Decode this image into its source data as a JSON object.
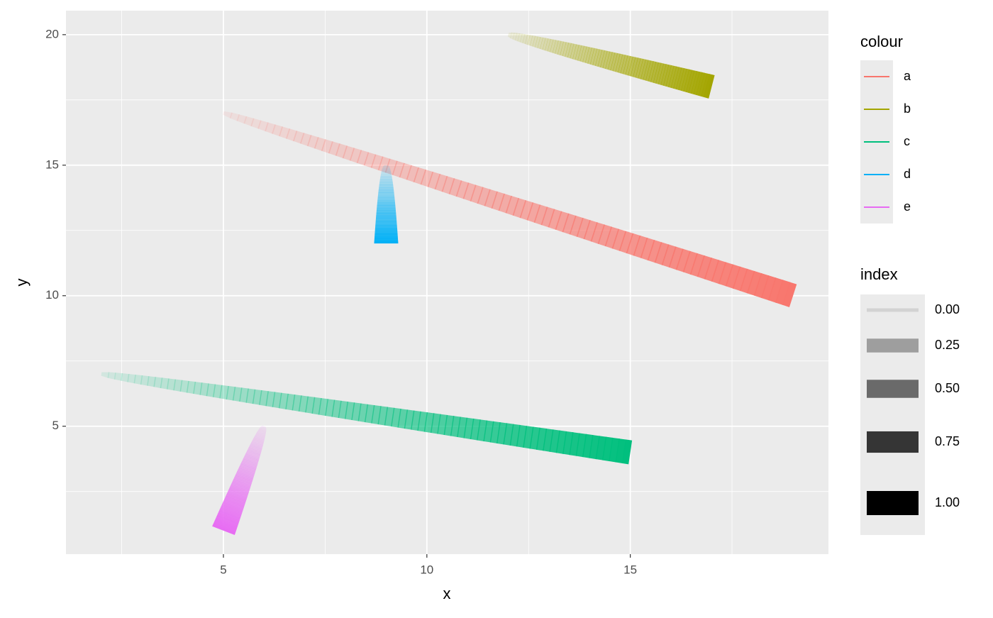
{
  "chart_data": {
    "type": "link",
    "x_label": "x",
    "y_label": "y",
    "series": [
      {
        "name": "a",
        "color": "#F8766D",
        "x": [
          5,
          19
        ],
        "y": [
          17,
          10
        ]
      },
      {
        "name": "b",
        "color": "#A3A500",
        "x": [
          12,
          17
        ],
        "y": [
          20,
          18
        ]
      },
      {
        "name": "c",
        "color": "#00BF7D",
        "x": [
          2,
          15
        ],
        "y": [
          7,
          4
        ]
      },
      {
        "name": "d",
        "color": "#00B0F6",
        "x": [
          9,
          9
        ],
        "y": [
          15,
          12
        ]
      },
      {
        "name": "e",
        "color": "#E76BF3",
        "x": [
          6,
          5
        ],
        "y": [
          5,
          1
        ]
      }
    ],
    "xlim": [
      1.13,
      19.87
    ],
    "ylim": [
      0.1,
      20.92
    ],
    "xticks": [
      5,
      10,
      15
    ],
    "yticks": [
      5,
      10,
      15,
      20
    ],
    "x_minor_ticks": [
      2.5,
      7.5,
      12.5,
      17.5
    ],
    "y_minor_ticks": [
      2.5,
      7.5,
      12.5,
      17.5
    ],
    "grid": true,
    "legend_position": "right",
    "colour_legend_title": "colour",
    "index_legend_title": "index",
    "index_breaks": [
      {
        "value": 0,
        "label": "0.00"
      },
      {
        "value": 0.25,
        "label": "0.25"
      },
      {
        "value": 0.5,
        "label": "0.50"
      },
      {
        "value": 0.75,
        "label": "0.75"
      },
      {
        "value": 1,
        "label": "1.00"
      }
    ]
  }
}
